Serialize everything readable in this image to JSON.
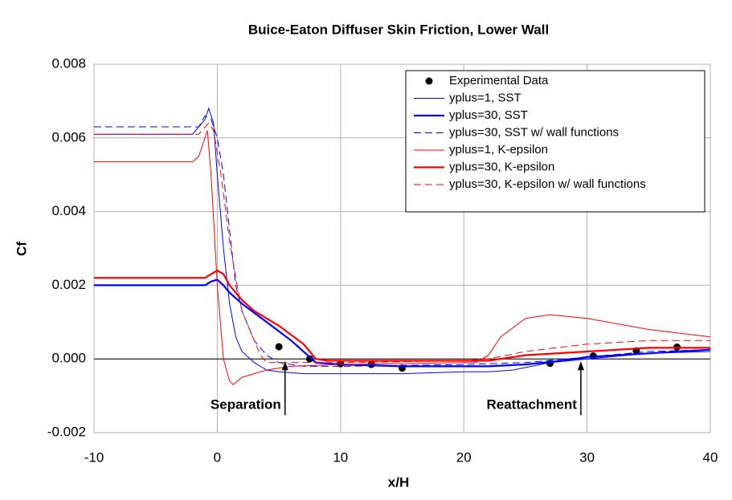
{
  "chart_data": {
    "type": "line",
    "title": "Buice-Eaton Diffuser Skin Friction, Lower Wall",
    "xlabel": "x/H",
    "ylabel": "Cf",
    "xlim": [
      -10,
      40
    ],
    "ylim": [
      -0.002,
      0.008
    ],
    "xticks": [
      -10,
      0,
      10,
      20,
      30,
      40
    ],
    "yticks": [
      -0.002,
      {
        "value": 0,
        "label": "0.000"
      },
      0.002,
      0.004,
      0.006,
      0.008
    ],
    "grid": true,
    "legend": "upper right",
    "series": [
      {
        "name": "Experimental Data",
        "color": "#000000",
        "style": "markers",
        "x": [
          5,
          7.5,
          10,
          12.5,
          15,
          27,
          30.5,
          34,
          37.3
        ],
        "values": [
          0.00033,
          0,
          -0.00013,
          -0.00015,
          -0.00025,
          -0.00012,
          8e-05,
          0.00022,
          0.00032
        ]
      },
      {
        "name": "yplus=1, SST",
        "color": "#0000ff",
        "style": "thin",
        "x": [
          -10,
          -2,
          -1,
          -0.7,
          -0.3,
          0,
          0.5,
          1,
          1.5,
          2,
          3,
          4,
          5,
          7,
          10,
          15,
          20,
          22,
          24,
          27,
          30,
          35,
          40
        ],
        "values": [
          0.0061,
          0.0061,
          0.0065,
          0.0068,
          0.0064,
          0.005,
          0.003,
          0.0015,
          0.0006,
          0.0002,
          -0.0001,
          -0.0003,
          -0.00035,
          -0.0004,
          -0.0004,
          -0.0004,
          -0.00035,
          -0.00035,
          -0.0003,
          -0.0001,
          0,
          0.00015,
          0.0002
        ]
      },
      {
        "name": "yplus=30, SST",
        "color": "#0000ff",
        "style": "thick",
        "x": [
          -10,
          -2,
          -1,
          -0.5,
          0,
          0.5,
          1,
          2,
          4,
          6,
          7.5,
          8,
          10,
          15,
          20,
          22,
          25,
          28,
          30,
          35,
          40
        ],
        "values": [
          0.002,
          0.002,
          0.002,
          0.0021,
          0.00215,
          0.002,
          0.0018,
          0.0015,
          0.001,
          0.0005,
          5e-05,
          -0.0001,
          -0.00015,
          -0.0002,
          -0.0002,
          -0.0002,
          -0.00015,
          -5e-05,
          5e-05,
          0.00015,
          0.00025
        ]
      },
      {
        "name": "yplus=30, SST w/ wall functions",
        "color": "#0000ff",
        "style": "dashed",
        "x": [
          -10,
          -1.5,
          -1,
          -0.5,
          0,
          0.5,
          1,
          1.5,
          2,
          3,
          4,
          5,
          7,
          10,
          20,
          25,
          30,
          35,
          40
        ],
        "values": [
          0.0063,
          0.0063,
          0.0066,
          0.0065,
          0.006,
          0.005,
          0.0035,
          0.002,
          0.0013,
          0.0005,
          0.0001,
          -0.0001,
          -0.0002,
          -0.0002,
          -0.00015,
          -0.0001,
          5e-05,
          0.0002,
          0.00025
        ]
      },
      {
        "name": "yplus=1, K-epsilon",
        "color": "#ff0000",
        "style": "thin",
        "x": [
          -10,
          -2,
          -1.5,
          -0.8,
          -0.5,
          0,
          0.5,
          1,
          1.3,
          2,
          4,
          6,
          10,
          20,
          21,
          22,
          23,
          25,
          27,
          30,
          35,
          40
        ],
        "values": [
          0.00535,
          0.00535,
          0.0055,
          0.0062,
          0.005,
          0.002,
          0,
          -0.0006,
          -0.0007,
          -0.0005,
          -0.0003,
          -0.0002,
          -0.00015,
          -0.0001,
          -0.0001,
          0.0001,
          0.0006,
          0.0011,
          0.0012,
          0.0011,
          0.0008,
          0.0006
        ]
      },
      {
        "name": "yplus=30, K-epsilon",
        "color": "#ff0000",
        "style": "thick",
        "x": [
          -10,
          -1,
          -0.5,
          0,
          0.5,
          1,
          2,
          3,
          5,
          7,
          8,
          9,
          15,
          22,
          25,
          30,
          35,
          40
        ],
        "values": [
          0.0022,
          0.0022,
          0.0023,
          0.0024,
          0.0023,
          0.002,
          0.0016,
          0.0013,
          0.0009,
          0.0004,
          0,
          -5e-05,
          -5e-05,
          -5e-05,
          0.0001,
          0.0002,
          0.0003,
          0.0003
        ]
      },
      {
        "name": "yplus=30, K-epsilon w/ wall functions",
        "color": "#ff0000",
        "style": "dashed",
        "x": [
          -10,
          -1.5,
          -0.7,
          -0.3,
          0.3,
          1,
          1.5,
          2,
          3,
          3.5,
          4,
          6,
          10,
          20,
          22,
          25,
          30,
          35,
          40
        ],
        "values": [
          0.0061,
          0.0061,
          0.0064,
          0.0062,
          0.005,
          0.0032,
          0.0022,
          0.0013,
          0.0005,
          0.0001,
          -0.0001,
          -0.0001,
          -0.0001,
          -5e-05,
          0,
          0.0002,
          0.0004,
          0.0005,
          0.0005
        ]
      }
    ],
    "annotations": [
      {
        "text": "Separation",
        "x": 5.5
      },
      {
        "text": "Reattachment",
        "x": 29.5
      }
    ]
  }
}
